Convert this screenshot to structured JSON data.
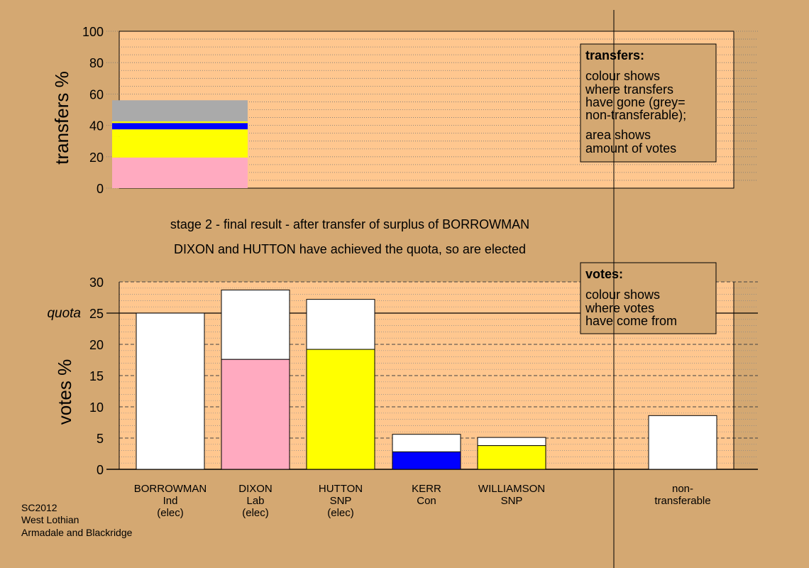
{
  "colors": {
    "background": "#d4a872",
    "plot_area": "#ffc78f",
    "white": "#ffffff",
    "pink": "#ffaac0",
    "yellow": "#ffff00",
    "blue": "#0000ff",
    "grey": "#aaaaaa",
    "legend_box": "#d4a872"
  },
  "captions": {
    "stage": "stage 2 - final result - after transfer of surplus of BORROWMAN",
    "elected": "DIXON and HUTTON have achieved the quota, so are elected"
  },
  "footer": [
    "SC2012",
    "West Lothian",
    "Armadale and Blackridge"
  ],
  "legend_transfers": {
    "title": "transfers:",
    "lines_a": [
      "colour shows",
      "where transfers",
      "have gone (grey=",
      "non-transferable);"
    ],
    "lines_b": [
      "area shows",
      "amount of votes"
    ]
  },
  "legend_votes": {
    "title": "votes:",
    "lines": [
      "colour shows",
      "where votes",
      "have come from"
    ]
  },
  "chart_data": [
    {
      "type": "bar",
      "name": "transfers",
      "ylabel": "transfers %",
      "ylim": [
        0,
        100
      ],
      "yticks": [
        0,
        20,
        40,
        60,
        80,
        100
      ],
      "stacked_segments": [
        {
          "color": "pink",
          "from": 0,
          "to": 19.5
        },
        {
          "color": "yellow",
          "from": 19.5,
          "to": 33
        },
        {
          "color": "yellow",
          "from": 33,
          "to": 37.5
        },
        {
          "color": "blue",
          "from": 37.5,
          "to": 41.5
        },
        {
          "color": "yellow",
          "from": 41.5,
          "to": 42.5
        },
        {
          "color": "grey",
          "from": 42.5,
          "to": 56
        }
      ]
    },
    {
      "type": "bar",
      "name": "votes",
      "ylabel": "votes %",
      "quota_label": "quota",
      "quota": 25,
      "ylim": [
        0,
        30
      ],
      "yticks": [
        0,
        5,
        10,
        15,
        20,
        25,
        30
      ],
      "candidates": [
        {
          "name": "BORROWMAN",
          "party": "Ind",
          "status": "(elec)",
          "total": 25,
          "segments": [
            {
              "color": "white",
              "value": 25
            }
          ]
        },
        {
          "name": "DIXON",
          "party": "Lab",
          "status": "(elec)",
          "total": 28.7,
          "segments": [
            {
              "color": "pink",
              "value": 17.6
            },
            {
              "color": "white",
              "value": 11.1
            }
          ]
        },
        {
          "name": "HUTTON",
          "party": "SNP",
          "status": "(elec)",
          "total": 27.2,
          "segments": [
            {
              "color": "yellow",
              "value": 19.2
            },
            {
              "color": "white",
              "value": 8.0
            }
          ]
        },
        {
          "name": "KERR",
          "party": "Con",
          "status": "",
          "total": 5.6,
          "segments": [
            {
              "color": "blue",
              "value": 2.8
            },
            {
              "color": "white",
              "value": 2.8
            }
          ]
        },
        {
          "name": "WILLIAMSON",
          "party": "SNP",
          "status": "",
          "total": 5.1,
          "segments": [
            {
              "color": "yellow",
              "value": 3.8
            },
            {
              "color": "white",
              "value": 1.3
            }
          ]
        },
        {
          "name": "non-",
          "party": "transferable",
          "status": "",
          "total": 8.6,
          "segments": [
            {
              "color": "white",
              "value": 8.6
            }
          ]
        }
      ]
    }
  ]
}
